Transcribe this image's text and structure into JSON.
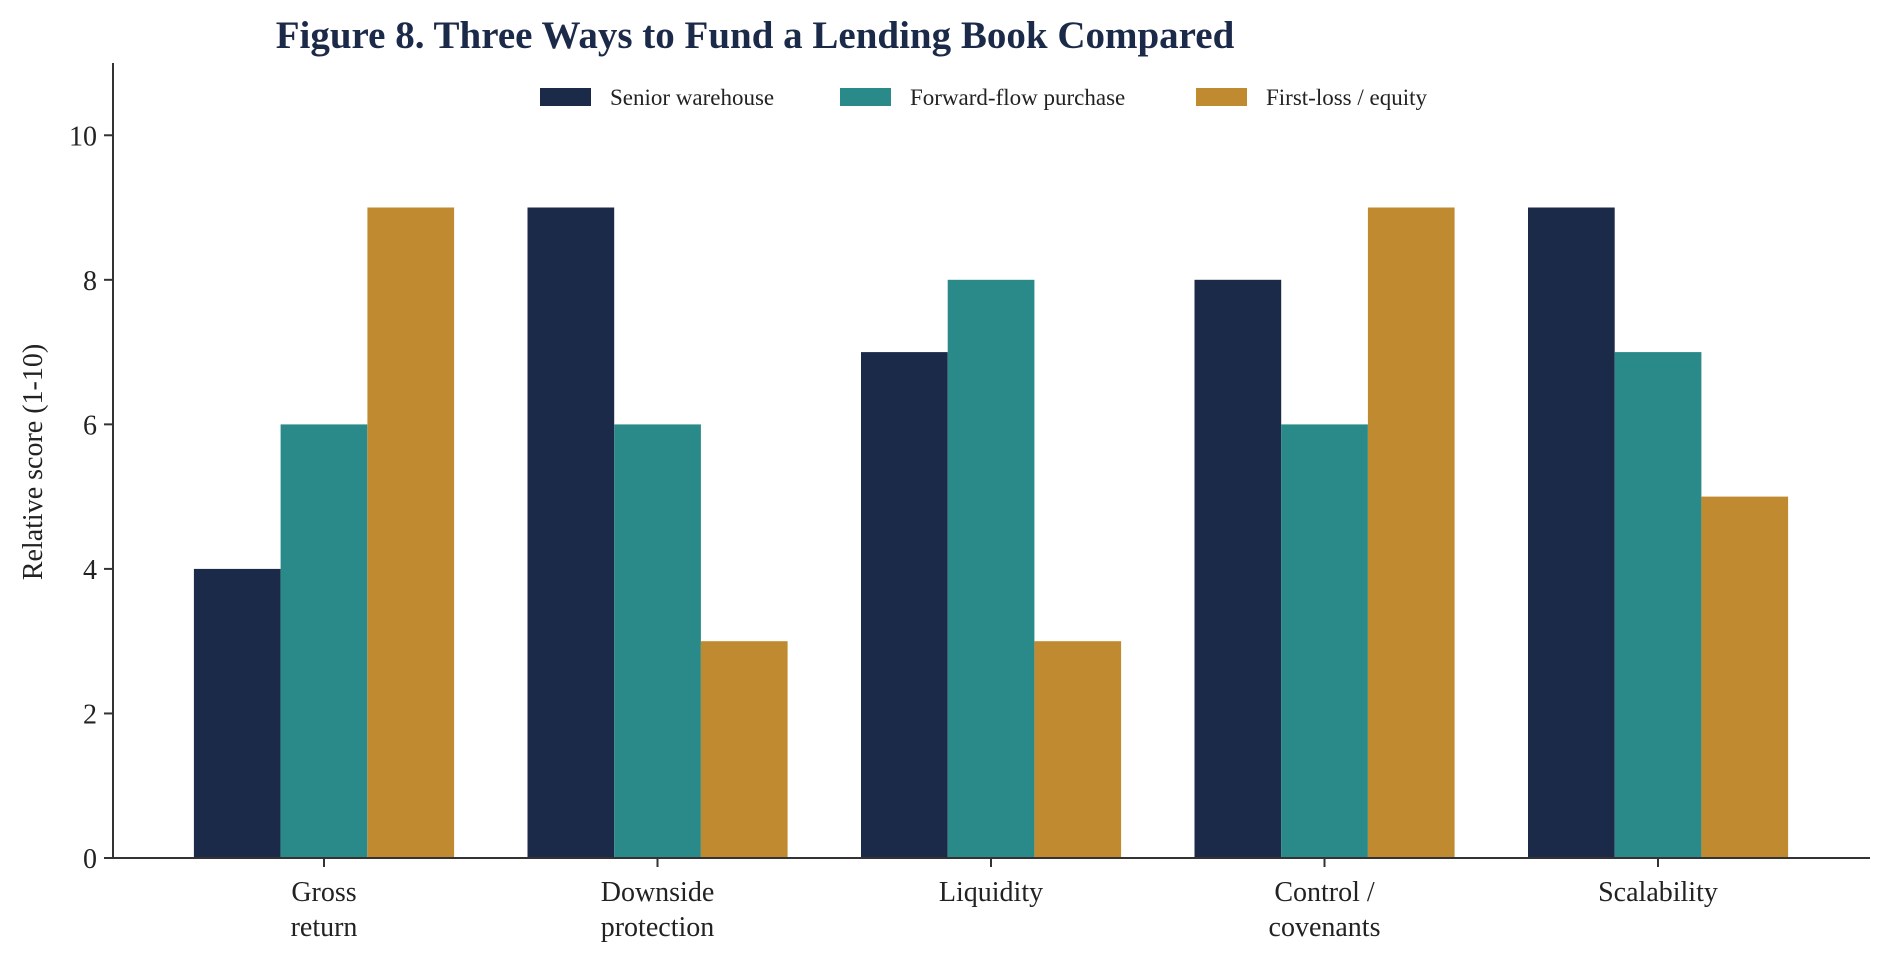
{
  "chart_data": {
    "type": "bar",
    "title": "Figure 8. Three Ways to Fund a Lending Book Compared",
    "xlabel": "",
    "ylabel": "Relative score (1-10)",
    "ylim": [
      0,
      11
    ],
    "yticks": [
      0,
      2,
      4,
      6,
      8,
      10
    ],
    "categories": [
      [
        "Gross",
        "return"
      ],
      [
        "Downside",
        "protection"
      ],
      [
        "Liquidity"
      ],
      [
        "Control /",
        "covenants"
      ],
      [
        "Scalability"
      ]
    ],
    "series": [
      {
        "name": "Senior warehouse",
        "color": "#1c2a4a",
        "values": [
          4,
          9,
          7,
          8,
          9
        ]
      },
      {
        "name": "Forward-flow purchase",
        "color": "#2a8a89",
        "values": [
          6,
          6,
          8,
          6,
          7
        ]
      },
      {
        "name": "First-loss / equity",
        "color": "#c08a30",
        "values": [
          9,
          3,
          3,
          9,
          5
        ]
      }
    ],
    "grid": false,
    "legend": "top-center"
  }
}
